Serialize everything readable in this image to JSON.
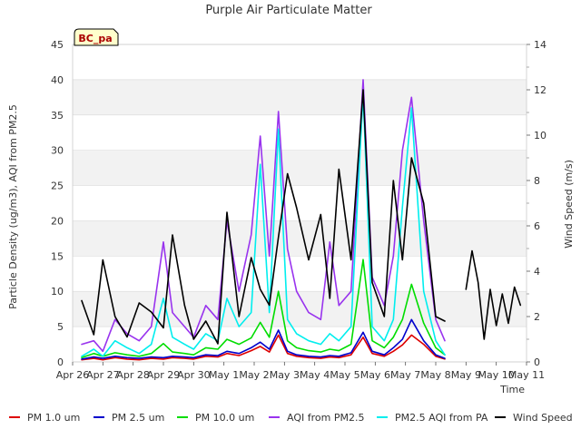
{
  "chart_data": {
    "type": "line",
    "title": "Purple Air Particulate Matter",
    "xlabel": "Time",
    "ylabel_left": "Particle Density (ug/m3), AQI from PM2.5",
    "ylabel_right": "Wind Speed (m/s)",
    "site_label": "BC_pa",
    "x_ticks": [
      "Apr 26",
      "Apr 27",
      "Apr 28",
      "Apr 29",
      "Apr 30",
      "May 1",
      "May 2",
      "May 3",
      "May 4",
      "May 5",
      "May 6",
      "May 7",
      "May 8",
      "May 9",
      "May 10",
      "May 11"
    ],
    "y_left_ticks": [
      "0",
      "5",
      "10",
      "15",
      "20",
      "25",
      "30",
      "35",
      "40",
      "45"
    ],
    "y_right_ticks": [
      "0",
      "2",
      "4",
      "6",
      "8",
      "10",
      "12",
      "14"
    ],
    "ylim_left": [
      0,
      45
    ],
    "ylim_right": [
      0,
      14
    ],
    "xlim_days": [
      0,
      15
    ],
    "legend_position": "bottom",
    "x_days": [
      0.3,
      0.7,
      1.0,
      1.4,
      1.8,
      2.2,
      2.6,
      3.0,
      3.3,
      3.7,
      4.0,
      4.4,
      4.8,
      5.1,
      5.5,
      5.9,
      6.2,
      6.5,
      6.8,
      7.1,
      7.4,
      7.8,
      8.2,
      8.5,
      8.8,
      9.2,
      9.6,
      9.9,
      10.3,
      10.6,
      10.9,
      11.2,
      11.6,
      12.0,
      12.3
    ],
    "series": [
      {
        "name": "PM 1.0 um",
        "color": "#dd0000",
        "axis": "left",
        "values": [
          0.3,
          0.5,
          0.3,
          0.6,
          0.4,
          0.3,
          0.5,
          0.4,
          0.6,
          0.5,
          0.4,
          0.8,
          0.7,
          1.2,
          0.9,
          1.6,
          2.2,
          1.4,
          3.8,
          1.2,
          0.8,
          0.6,
          0.5,
          0.7,
          0.6,
          1.0,
          3.5,
          1.2,
          0.8,
          1.5,
          2.4,
          3.8,
          2.5,
          0.8,
          0.4
        ]
      },
      {
        "name": "PM 2.5 um",
        "color": "#0000cc",
        "axis": "left",
        "values": [
          0.4,
          0.7,
          0.5,
          0.8,
          0.6,
          0.5,
          0.7,
          0.6,
          0.8,
          0.7,
          0.6,
          1.0,
          0.9,
          1.5,
          1.2,
          2.0,
          2.8,
          1.8,
          4.5,
          1.5,
          1.0,
          0.8,
          0.7,
          0.9,
          0.8,
          1.3,
          4.2,
          1.5,
          1.0,
          2.0,
          3.2,
          6.0,
          3.0,
          1.0,
          0.5
        ]
      },
      {
        "name": "PM 10.0 um",
        "color": "#00dd00",
        "axis": "left",
        "values": [
          0.6,
          1.2,
          0.8,
          1.3,
          1.0,
          0.8,
          1.2,
          2.6,
          1.4,
          1.2,
          1.0,
          2.0,
          1.8,
          3.2,
          2.5,
          3.4,
          5.6,
          3.5,
          10.0,
          3.0,
          2.0,
          1.6,
          1.4,
          1.8,
          1.6,
          2.5,
          14.5,
          3.0,
          2.0,
          3.5,
          6.0,
          11.0,
          5.5,
          2.0,
          1.0
        ]
      },
      {
        "name": "AQI from PM2.5",
        "color": "#9933ee",
        "axis": "left",
        "values": [
          2.5,
          3.0,
          1.5,
          6.0,
          4.0,
          3.0,
          5.0,
          17.0,
          7.0,
          5.0,
          3.5,
          8.0,
          6.0,
          20.0,
          10.0,
          18.0,
          32.0,
          15.0,
          35.5,
          16.0,
          10.0,
          7.0,
          6.0,
          17.0,
          8.0,
          10.0,
          40.0,
          12.0,
          8.0,
          15.0,
          30.0,
          37.5,
          20.0,
          6.0,
          3.0
        ]
      },
      {
        "name": "PM2.5 AQI from PA",
        "color": "#00eeee",
        "axis": "left",
        "values": [
          0.8,
          1.8,
          0.8,
          3.0,
          2.0,
          1.2,
          2.5,
          9.0,
          3.5,
          2.5,
          1.8,
          4.0,
          3.0,
          9.0,
          5.0,
          7.0,
          28.0,
          7.0,
          33.0,
          6.0,
          4.0,
          3.0,
          2.5,
          4.0,
          3.0,
          5.0,
          38.0,
          5.0,
          3.0,
          6.0,
          22.0,
          36.0,
          10.0,
          3.0,
          1.0
        ]
      },
      {
        "name": "Wind Speed",
        "color": "#000000",
        "axis": "right",
        "values": [
          2.7,
          1.2,
          4.5,
          2.0,
          1.1,
          2.6,
          2.2,
          1.5,
          5.6,
          2.5,
          1.0,
          1.8,
          0.8,
          6.6,
          2.0,
          4.6,
          3.2,
          2.5,
          5.5,
          8.3,
          6.8,
          4.5,
          6.5,
          2.8,
          8.5,
          4.5,
          12.0,
          3.5,
          2.0,
          8.0,
          4.5,
          9.0,
          7.0,
          2.0,
          1.8
        ]
      },
      {
        "name": "Wind Speed",
        "color": "#000000",
        "axis": "right",
        "x_days": [
          13.0,
          13.2,
          13.4,
          13.6,
          13.8,
          14.0,
          14.2,
          14.4,
          14.6,
          14.8
        ],
        "values": [
          3.2,
          4.9,
          3.5,
          1.0,
          3.2,
          1.6,
          3.0,
          1.7,
          3.3,
          2.5
        ]
      }
    ]
  }
}
